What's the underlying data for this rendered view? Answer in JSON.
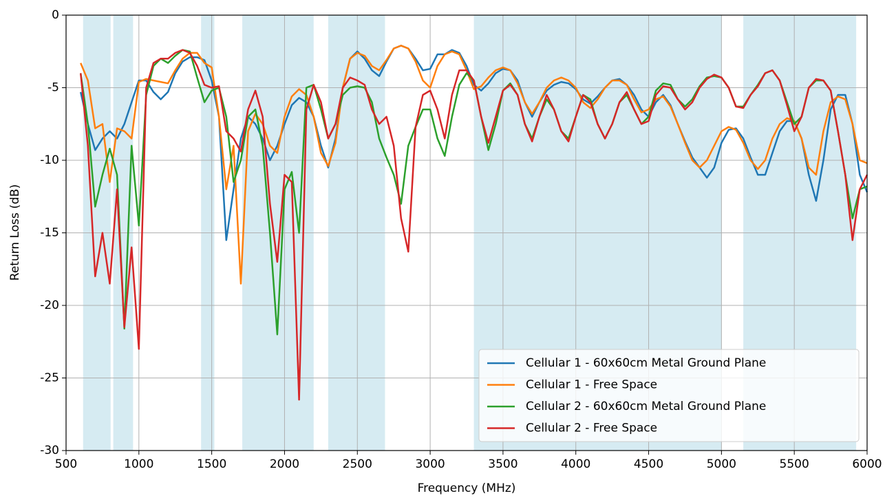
{
  "chart_data": {
    "type": "line",
    "xlabel": "Frequency (MHz)",
    "ylabel": "Return Loss (dB)",
    "xlim": [
      500,
      6000
    ],
    "ylim": [
      -30,
      0
    ],
    "xticks": [
      500,
      1000,
      1500,
      2000,
      2500,
      3000,
      3500,
      4000,
      4500,
      5000,
      5500,
      6000
    ],
    "yticks": [
      -30,
      -25,
      -20,
      -15,
      -10,
      -5,
      0
    ],
    "grid": true,
    "legend": "lower right",
    "band_color": "#add8e6",
    "bands": [
      [
        617,
        806
      ],
      [
        824,
        960
      ],
      [
        1427,
        1518
      ],
      [
        1710,
        2200
      ],
      [
        2300,
        2690
      ],
      [
        3300,
        5000
      ],
      [
        5150,
        5925
      ]
    ],
    "x": [
      600,
      650,
      700,
      750,
      800,
      850,
      900,
      950,
      1000,
      1050,
      1100,
      1150,
      1200,
      1250,
      1300,
      1350,
      1400,
      1450,
      1500,
      1550,
      1600,
      1650,
      1700,
      1750,
      1800,
      1850,
      1900,
      1950,
      2000,
      2050,
      2100,
      2150,
      2200,
      2250,
      2300,
      2350,
      2400,
      2450,
      2500,
      2550,
      2600,
      2650,
      2700,
      2750,
      2800,
      2850,
      2900,
      2950,
      3000,
      3050,
      3100,
      3150,
      3200,
      3250,
      3300,
      3350,
      3400,
      3450,
      3500,
      3550,
      3600,
      3650,
      3700,
      3750,
      3800,
      3850,
      3900,
      3950,
      4000,
      4050,
      4100,
      4150,
      4200,
      4250,
      4300,
      4350,
      4400,
      4450,
      4500,
      4550,
      4600,
      4650,
      4700,
      4750,
      4800,
      4850,
      4900,
      4950,
      5000,
      5050,
      5100,
      5150,
      5200,
      5250,
      5300,
      5350,
      5400,
      5450,
      5500,
      5550,
      5600,
      5650,
      5700,
      5750,
      5800,
      5850,
      5900,
      5950,
      6000
    ],
    "series": [
      {
        "name": "Cellular 1 - 60x60cm Metal Ground Plane",
        "color": "#1f77b4",
        "values": [
          -5.3,
          -7.5,
          -9.3,
          -8.5,
          -8,
          -8.5,
          -7.5,
          -6,
          -4.5,
          -4.5,
          -5.3,
          -5.8,
          -5.3,
          -4,
          -3.2,
          -2.9,
          -2.9,
          -3.1,
          -4.5,
          -7,
          -15.5,
          -12,
          -8.5,
          -7,
          -7.5,
          -8.5,
          -10,
          -9,
          -7.5,
          -6.2,
          -5.7,
          -6,
          -7,
          -9,
          -10.5,
          -8.5,
          -5,
          -3,
          -2.5,
          -3,
          -3.8,
          -4.2,
          -3.2,
          -2.3,
          -2.1,
          -2.3,
          -3,
          -3.8,
          -3.7,
          -2.7,
          -2.7,
          -2.4,
          -2.6,
          -3.5,
          -4.8,
          -5.2,
          -4.7,
          -4,
          -3.7,
          -3.8,
          -4.5,
          -6,
          -7,
          -6,
          -5.2,
          -4.8,
          -4.6,
          -4.7,
          -5.1,
          -5.8,
          -6.1,
          -5.6,
          -5,
          -4.5,
          -4.4,
          -4.8,
          -5.5,
          -6.5,
          -7,
          -6,
          -5.5,
          -6.2,
          -7.5,
          -8.7,
          -9.8,
          -10.5,
          -11.2,
          -10.5,
          -8.8,
          -7.9,
          -7.8,
          -8.5,
          -9.8,
          -11,
          -11,
          -9.5,
          -8,
          -7.3,
          -7.3,
          -8.5,
          -11,
          -12.8,
          -10,
          -6.5,
          -5.5,
          -5.5,
          -7.5,
          -11,
          -12.2
        ]
      },
      {
        "name": "Cellular 1 - Free Space",
        "color": "#ff7f0e",
        "values": [
          -3.3,
          -4.5,
          -7.8,
          -7.5,
          -11.5,
          -7.8,
          -8,
          -8.5,
          -4.6,
          -4.4,
          -4.5,
          -4.6,
          -4.7,
          -3.8,
          -3,
          -2.6,
          -2.6,
          -3.3,
          -3.6,
          -7,
          -12,
          -9,
          -18.5,
          -8,
          -6.8,
          -7.5,
          -9,
          -9.5,
          -7,
          -5.6,
          -5.1,
          -5.5,
          -7,
          -9.5,
          -10.4,
          -8.8,
          -5,
          -3,
          -2.6,
          -2.8,
          -3.5,
          -3.8,
          -3.1,
          -2.3,
          -2.1,
          -2.3,
          -3.2,
          -4.5,
          -5,
          -3.5,
          -2.7,
          -2.5,
          -2.7,
          -3.8,
          -5.1,
          -4.9,
          -4.3,
          -3.8,
          -3.6,
          -3.8,
          -4.7,
          -6,
          -6.8,
          -6,
          -5,
          -4.5,
          -4.3,
          -4.5,
          -5,
          -6,
          -6.4,
          -5.8,
          -5,
          -4.5,
          -4.5,
          -4.8,
          -5.8,
          -6.7,
          -6.5,
          -5.8,
          -5.6,
          -6.3,
          -7.5,
          -8.8,
          -10,
          -10.5,
          -10,
          -9,
          -8,
          -7.7,
          -7.9,
          -8.8,
          -10,
          -10.6,
          -10,
          -8.5,
          -7.5,
          -7.1,
          -7.3,
          -8.5,
          -10.5,
          -11,
          -8,
          -6,
          -5.6,
          -5.8,
          -7.5,
          -10,
          -10.2
        ]
      },
      {
        "name": "Cellular 2 - 60x60cm Metal Ground Plane",
        "color": "#2ca02c",
        "values": [
          -4,
          -7.5,
          -13.2,
          -11,
          -9.2,
          -11,
          -21.6,
          -9,
          -14.5,
          -5.5,
          -3.5,
          -3,
          -3.3,
          -2.8,
          -2.4,
          -2.5,
          -4.3,
          -6,
          -5.2,
          -5,
          -7,
          -11.5,
          -10,
          -7,
          -6.5,
          -9,
          -15,
          -22,
          -12,
          -10.8,
          -15,
          -5,
          -4.8,
          -6.5,
          -8.5,
          -7.5,
          -5.5,
          -5,
          -4.9,
          -5,
          -6,
          -8.5,
          -9.8,
          -11,
          -13,
          -9,
          -7.7,
          -6.5,
          -6.5,
          -8.5,
          -9.7,
          -7,
          -4.8,
          -4,
          -4.5,
          -7,
          -9.3,
          -7.5,
          -5.2,
          -4.7,
          -5.5,
          -7.5,
          -8.5,
          -7,
          -5.8,
          -6.5,
          -8,
          -8.5,
          -7,
          -5.5,
          -5.8,
          -7.5,
          -8.5,
          -7.5,
          -6,
          -5.5,
          -6.5,
          -7.5,
          -7,
          -5.2,
          -4.7,
          -4.8,
          -5.8,
          -6.3,
          -5.8,
          -4.9,
          -4.3,
          -4.2,
          -4.3,
          -5,
          -6.3,
          -6.3,
          -5.5,
          -4.8,
          -4,
          -3.8,
          -4.5,
          -6,
          -7.5,
          -7,
          -5,
          -4.5,
          -4.5,
          -5.2,
          -8,
          -11,
          -14,
          -12,
          -11.8
        ]
      },
      {
        "name": "Cellular 2 - Free Space",
        "color": "#d62728",
        "values": [
          -4,
          -9,
          -18,
          -15,
          -18.5,
          -12,
          -21.5,
          -16,
          -23,
          -5,
          -3.3,
          -3,
          -3,
          -2.6,
          -2.4,
          -2.6,
          -3.5,
          -4.8,
          -5,
          -4.9,
          -8,
          -8.5,
          -9.4,
          -6.5,
          -5.2,
          -7,
          -13,
          -17,
          -11,
          -11.5,
          -26.5,
          -6.5,
          -4.8,
          -6,
          -8.5,
          -7.5,
          -5,
          -4.3,
          -4.5,
          -4.8,
          -6.5,
          -7.5,
          -7,
          -9,
          -14,
          -16.3,
          -7.7,
          -5.5,
          -5.2,
          -6.5,
          -8.5,
          -5.5,
          -3.8,
          -3.8,
          -4.5,
          -7,
          -8.8,
          -7,
          -5.2,
          -4.8,
          -5.5,
          -7.5,
          -8.7,
          -7,
          -5.5,
          -6.5,
          -8,
          -8.7,
          -7,
          -5.5,
          -6,
          -7.5,
          -8.5,
          -7.5,
          -6,
          -5.3,
          -6.5,
          -7.5,
          -7.3,
          -5.5,
          -4.9,
          -5,
          -5.8,
          -6.5,
          -6,
          -5,
          -4.4,
          -4.1,
          -4.3,
          -5,
          -6.3,
          -6.4,
          -5.5,
          -4.9,
          -4,
          -3.8,
          -4.5,
          -6.2,
          -8,
          -7,
          -5,
          -4.4,
          -4.5,
          -5.2,
          -8,
          -11,
          -15.5,
          -12,
          -11
        ]
      }
    ]
  }
}
